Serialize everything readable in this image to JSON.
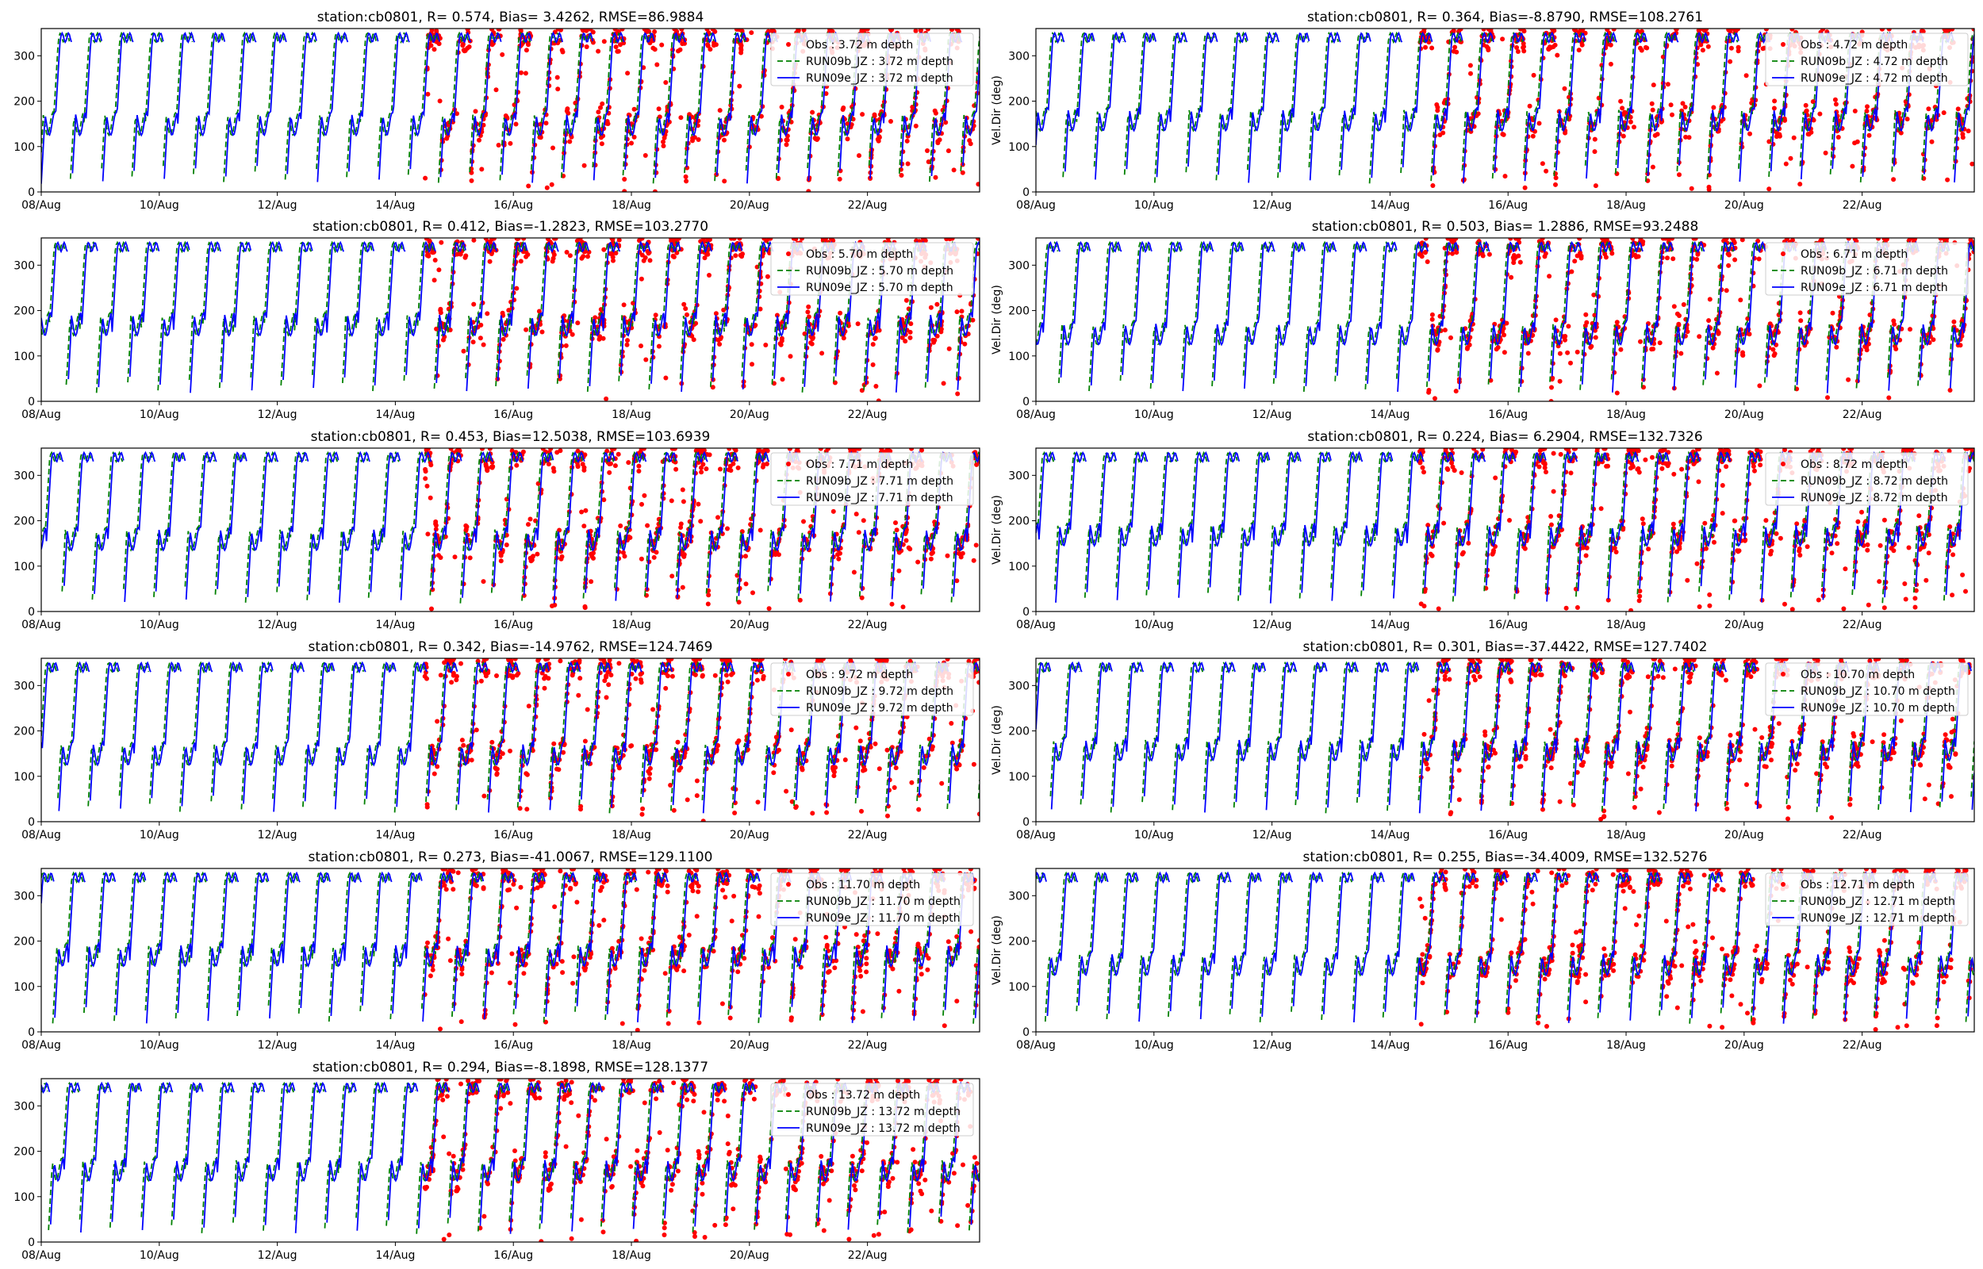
{
  "figure": {
    "background": "#ffffff"
  },
  "colors": {
    "obs": "#ff0000",
    "run09b": "#008000",
    "run09e": "#0000ff"
  },
  "chart_data": [
    {
      "type": "line",
      "title": "station:cb0801, R= 0.574, Bias= 3.4262, RMSE=86.9884",
      "xlabel": "",
      "ylabel": "",
      "x_ticks": [
        "08/Aug",
        "10/Aug",
        "12/Aug",
        "14/Aug",
        "16/Aug",
        "18/Aug",
        "20/Aug",
        "22/Aug"
      ],
      "ylim": [
        0,
        360
      ],
      "y_ticks": [
        0,
        100,
        200,
        300
      ],
      "legend_position": "upper-right",
      "series": [
        {
          "name": "Obs : 3.72 m depth",
          "style": "points"
        },
        {
          "name": "RUN09b_JZ : 3.72 m depth",
          "style": "dashed"
        },
        {
          "name": "RUN09e_JZ : 3.72 m depth",
          "style": "solid"
        }
      ]
    },
    {
      "type": "line",
      "title": "station:cb0801, R= 0.364, Bias=-8.8790, RMSE=108.2761",
      "xlabel": "",
      "ylabel": "Vel.Dir (deg)",
      "x_ticks": [
        "08/Aug",
        "10/Aug",
        "12/Aug",
        "14/Aug",
        "16/Aug",
        "18/Aug",
        "20/Aug",
        "22/Aug"
      ],
      "ylim": [
        0,
        360
      ],
      "y_ticks": [
        0,
        100,
        200,
        300
      ],
      "legend_position": "upper-right",
      "series": [
        {
          "name": "Obs : 4.72 m depth",
          "style": "points"
        },
        {
          "name": "RUN09b_JZ : 4.72 m depth",
          "style": "dashed"
        },
        {
          "name": "RUN09e_JZ : 4.72 m depth",
          "style": "solid"
        }
      ]
    },
    {
      "type": "line",
      "title": "station:cb0801, R= 0.412, Bias=-1.2823, RMSE=103.2770",
      "xlabel": "",
      "ylabel": "",
      "x_ticks": [
        "08/Aug",
        "10/Aug",
        "12/Aug",
        "14/Aug",
        "16/Aug",
        "18/Aug",
        "20/Aug",
        "22/Aug"
      ],
      "ylim": [
        0,
        360
      ],
      "y_ticks": [
        0,
        100,
        200,
        300
      ],
      "legend_position": "upper-right",
      "series": [
        {
          "name": "Obs : 5.70 m depth",
          "style": "points"
        },
        {
          "name": "RUN09b_JZ : 5.70 m depth",
          "style": "dashed"
        },
        {
          "name": "RUN09e_JZ : 5.70 m depth",
          "style": "solid"
        }
      ]
    },
    {
      "type": "line",
      "title": "station:cb0801, R= 0.503, Bias= 1.2886, RMSE=93.2488",
      "xlabel": "",
      "ylabel": "Vel.Dir (deg)",
      "x_ticks": [
        "08/Aug",
        "10/Aug",
        "12/Aug",
        "14/Aug",
        "16/Aug",
        "18/Aug",
        "20/Aug",
        "22/Aug"
      ],
      "ylim": [
        0,
        360
      ],
      "y_ticks": [
        0,
        100,
        200,
        300
      ],
      "legend_position": "upper-right",
      "series": [
        {
          "name": "Obs : 6.71 m depth",
          "style": "points"
        },
        {
          "name": "RUN09b_JZ : 6.71 m depth",
          "style": "dashed"
        },
        {
          "name": "RUN09e_JZ : 6.71 m depth",
          "style": "solid"
        }
      ]
    },
    {
      "type": "line",
      "title": "station:cb0801, R= 0.453, Bias=12.5038, RMSE=103.6939",
      "xlabel": "",
      "ylabel": "",
      "x_ticks": [
        "08/Aug",
        "10/Aug",
        "12/Aug",
        "14/Aug",
        "16/Aug",
        "18/Aug",
        "20/Aug",
        "22/Aug"
      ],
      "ylim": [
        0,
        360
      ],
      "y_ticks": [
        0,
        100,
        200,
        300
      ],
      "legend_position": "upper-right",
      "series": [
        {
          "name": "Obs : 7.71 m depth",
          "style": "points"
        },
        {
          "name": "RUN09b_JZ : 7.71 m depth",
          "style": "dashed"
        },
        {
          "name": "RUN09e_JZ : 7.71 m depth",
          "style": "solid"
        }
      ]
    },
    {
      "type": "line",
      "title": "station:cb0801, R= 0.224, Bias= 6.2904, RMSE=132.7326",
      "xlabel": "",
      "ylabel": "Vel.Dir (deg)",
      "x_ticks": [
        "08/Aug",
        "10/Aug",
        "12/Aug",
        "14/Aug",
        "16/Aug",
        "18/Aug",
        "20/Aug",
        "22/Aug"
      ],
      "ylim": [
        0,
        360
      ],
      "y_ticks": [
        0,
        100,
        200,
        300
      ],
      "legend_position": "upper-right",
      "series": [
        {
          "name": "Obs : 8.72 m depth",
          "style": "points"
        },
        {
          "name": "RUN09b_JZ : 8.72 m depth",
          "style": "dashed"
        },
        {
          "name": "RUN09e_JZ : 8.72 m depth",
          "style": "solid"
        }
      ]
    },
    {
      "type": "line",
      "title": "station:cb0801, R= 0.342, Bias=-14.9762, RMSE=124.7469",
      "xlabel": "",
      "ylabel": "",
      "x_ticks": [
        "08/Aug",
        "10/Aug",
        "12/Aug",
        "14/Aug",
        "16/Aug",
        "18/Aug",
        "20/Aug",
        "22/Aug"
      ],
      "ylim": [
        0,
        360
      ],
      "y_ticks": [
        0,
        100,
        200,
        300
      ],
      "legend_position": "upper-right",
      "series": [
        {
          "name": "Obs : 9.72 m depth",
          "style": "points"
        },
        {
          "name": "RUN09b_JZ : 9.72 m depth",
          "style": "dashed"
        },
        {
          "name": "RUN09e_JZ : 9.72 m depth",
          "style": "solid"
        }
      ]
    },
    {
      "type": "line",
      "title": "station:cb0801, R= 0.301, Bias=-37.4422, RMSE=127.7402",
      "xlabel": "",
      "ylabel": "Vel.Dir (deg)",
      "x_ticks": [
        "08/Aug",
        "10/Aug",
        "12/Aug",
        "14/Aug",
        "16/Aug",
        "18/Aug",
        "20/Aug",
        "22/Aug"
      ],
      "ylim": [
        0,
        360
      ],
      "y_ticks": [
        0,
        100,
        200,
        300
      ],
      "legend_position": "upper-right",
      "series": [
        {
          "name": "Obs : 10.70 m depth",
          "style": "points"
        },
        {
          "name": "RUN09b_JZ : 10.70 m depth",
          "style": "dashed"
        },
        {
          "name": "RUN09e_JZ : 10.70 m depth",
          "style": "solid"
        }
      ]
    },
    {
      "type": "line",
      "title": "station:cb0801, R= 0.273, Bias=-41.0067, RMSE=129.1100",
      "xlabel": "",
      "ylabel": "",
      "x_ticks": [
        "08/Aug",
        "10/Aug",
        "12/Aug",
        "14/Aug",
        "16/Aug",
        "18/Aug",
        "20/Aug",
        "22/Aug"
      ],
      "ylim": [
        0,
        360
      ],
      "y_ticks": [
        0,
        100,
        200,
        300
      ],
      "legend_position": "upper-right",
      "series": [
        {
          "name": "Obs : 11.70 m depth",
          "style": "points"
        },
        {
          "name": "RUN09b_JZ : 11.70 m depth",
          "style": "dashed"
        },
        {
          "name": "RUN09e_JZ : 11.70 m depth",
          "style": "solid"
        }
      ]
    },
    {
      "type": "line",
      "title": "station:cb0801, R= 0.255, Bias=-34.4009, RMSE=132.5276",
      "xlabel": "",
      "ylabel": "Vel.Dir (deg)",
      "x_ticks": [
        "08/Aug",
        "10/Aug",
        "12/Aug",
        "14/Aug",
        "16/Aug",
        "18/Aug",
        "20/Aug",
        "22/Aug"
      ],
      "ylim": [
        0,
        360
      ],
      "y_ticks": [
        0,
        100,
        200,
        300
      ],
      "legend_position": "upper-right",
      "series": [
        {
          "name": "Obs : 12.71 m depth",
          "style": "points"
        },
        {
          "name": "RUN09b_JZ : 12.71 m depth",
          "style": "dashed"
        },
        {
          "name": "RUN09e_JZ : 12.71 m depth",
          "style": "solid"
        }
      ]
    },
    {
      "type": "line",
      "title": "station:cb0801, R= 0.294, Bias=-8.1898, RMSE=128.1377",
      "xlabel": "",
      "ylabel": "",
      "x_ticks": [
        "08/Aug",
        "10/Aug",
        "12/Aug",
        "14/Aug",
        "16/Aug",
        "18/Aug",
        "20/Aug",
        "22/Aug"
      ],
      "ylim": [
        0,
        360
      ],
      "y_ticks": [
        0,
        100,
        200,
        300
      ],
      "legend_position": "upper-right",
      "series": [
        {
          "name": "Obs : 13.72 m depth",
          "style": "points"
        },
        {
          "name": "RUN09b_JZ : 13.72 m depth",
          "style": "dashed"
        },
        {
          "name": "RUN09e_JZ : 13.72 m depth",
          "style": "solid"
        }
      ]
    }
  ]
}
